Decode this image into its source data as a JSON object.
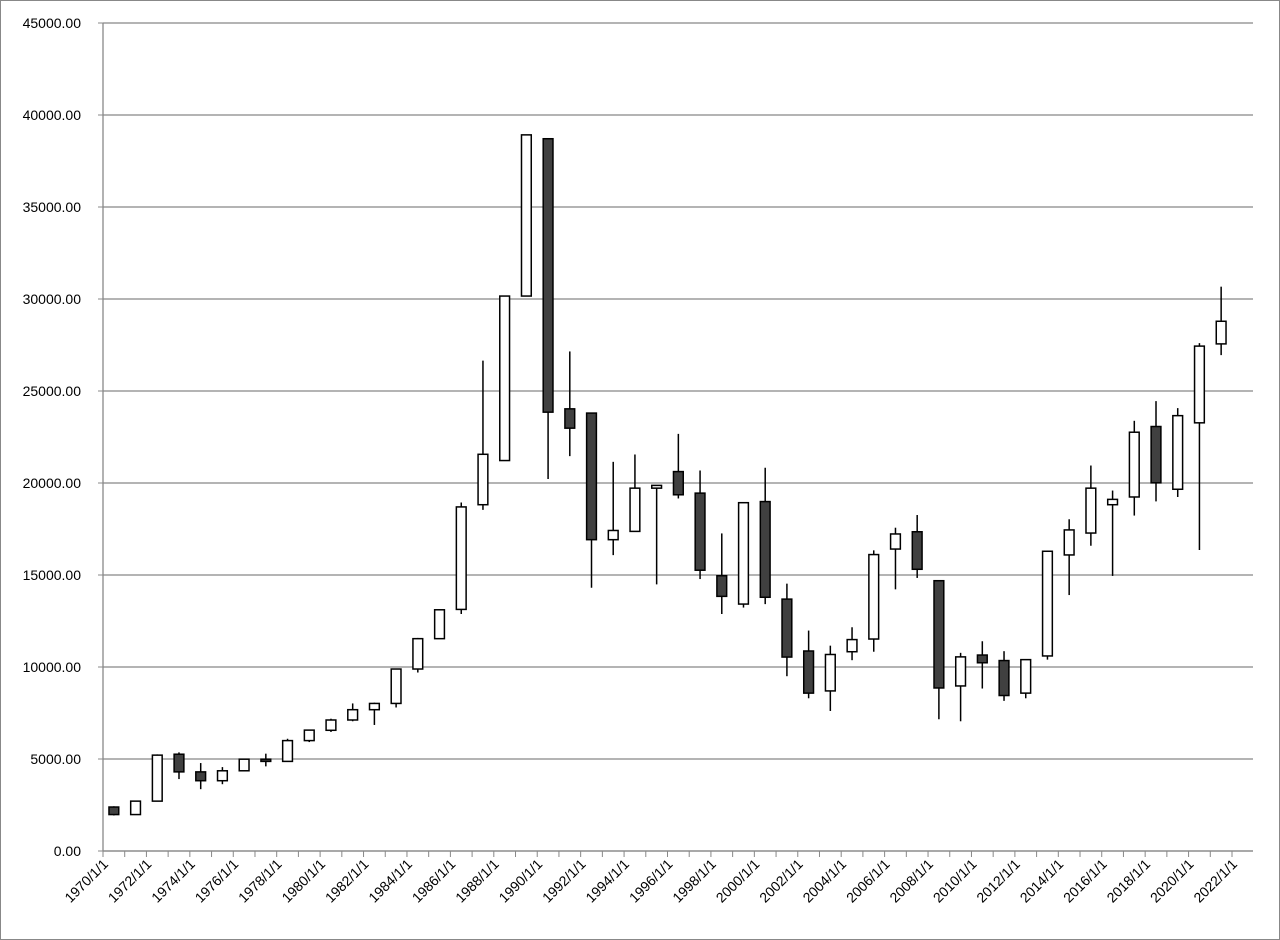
{
  "chart_data": {
    "type": "candlestick",
    "ylim": [
      0,
      45000
    ],
    "yticks": [
      {
        "value": 0,
        "label": "0.00"
      },
      {
        "value": 5000,
        "label": "5000.00"
      },
      {
        "value": 10000,
        "label": "10000.00"
      },
      {
        "value": 15000,
        "label": "15000.00"
      },
      {
        "value": 20000,
        "label": "20000.00"
      },
      {
        "value": 25000,
        "label": "25000.00"
      },
      {
        "value": 30000,
        "label": "30000.00"
      },
      {
        "value": 35000,
        "label": "35000.00"
      },
      {
        "value": 40000,
        "label": "40000.00"
      },
      {
        "value": 45000,
        "label": "45000.00"
      }
    ],
    "xticks": [
      "1970/1/1",
      "1972/1/1",
      "1974/1/1",
      "1976/1/1",
      "1978/1/1",
      "1980/1/1",
      "1982/1/1",
      "1984/1/1",
      "1986/1/1",
      "1988/1/1",
      "1990/1/1",
      "1992/1/1",
      "1994/1/1",
      "1996/1/1",
      "1998/1/1",
      "2000/1/1",
      "2002/1/1",
      "2004/1/1",
      "2006/1/1",
      "2008/1/1",
      "2010/1/1",
      "2012/1/1",
      "2014/1/1",
      "2016/1/1",
      "2018/1/1",
      "2020/1/1",
      "2022/1/1"
    ],
    "grid": true,
    "up_color": "#ffffff",
    "down_color": "#404040",
    "open": [
      2390,
      1980,
      2710,
      5260,
      4300,
      3820,
      4360,
      4990,
      4870,
      6000,
      6560,
      7120,
      7680,
      8020,
      9890,
      11540,
      13130,
      18820,
      21220,
      30160,
      38710,
      24030,
      23800,
      16920,
      17370,
      19720,
      20620,
      19450,
      14960,
      13420,
      18990,
      13690,
      10870,
      8700,
      10830,
      11520,
      16410,
      17350,
      14690,
      8970,
      10650,
      10350,
      8580,
      10600,
      16090,
      17280,
      18820,
      19240,
      23070,
      19660,
      23270,
      27560
    ],
    "high": [
      2430,
      2740,
      5250,
      5360,
      4780,
      4560,
      5000,
      5290,
      6100,
      6590,
      7190,
      8020,
      8060,
      9890,
      11580,
      13130,
      18940,
      26650,
      30160,
      38920,
      38710,
      27150,
      23800,
      21150,
      21550,
      19870,
      22670,
      20680,
      17260,
      18930,
      20830,
      14530,
      11980,
      11160,
      12160,
      16340,
      17570,
      18260,
      14690,
      10770,
      11400,
      10860,
      10400,
      16320,
      18030,
      20950,
      19590,
      23380,
      24450,
      24070,
      27600,
      30670
    ],
    "low": [
      1930,
      1980,
      2710,
      3910,
      3360,
      3630,
      4360,
      4600,
      4870,
      5920,
      6470,
      7050,
      6850,
      7800,
      9700,
      11540,
      12880,
      18540,
      21220,
      30160,
      20220,
      21460,
      14310,
      16080,
      17370,
      14490,
      19160,
      14780,
      12880,
      13230,
      13420,
      9500,
      8300,
      7610,
      10370,
      10830,
      14220,
      14840,
      7160,
      7050,
      8830,
      8160,
      8300,
      10400,
      13910,
      16590,
      14950,
      18230,
      19000,
      19240,
      16360,
      26950
    ],
    "close": [
      1980,
      2710,
      5210,
      4300,
      3820,
      4360,
      4990,
      4870,
      6000,
      6570,
      7120,
      7680,
      8020,
      9890,
      11540,
      13110,
      18700,
      21560,
      30160,
      38920,
      23850,
      22980,
      16920,
      17420,
      19720,
      19870,
      19360,
      15260,
      13840,
      18930,
      13790,
      10540,
      8580,
      10680,
      11490,
      16110,
      17230,
      15310,
      8860,
      10550,
      10230,
      8450,
      10400,
      16290,
      17450,
      19720,
      19110,
      22760,
      20010,
      23660,
      27440,
      28790
    ]
  }
}
